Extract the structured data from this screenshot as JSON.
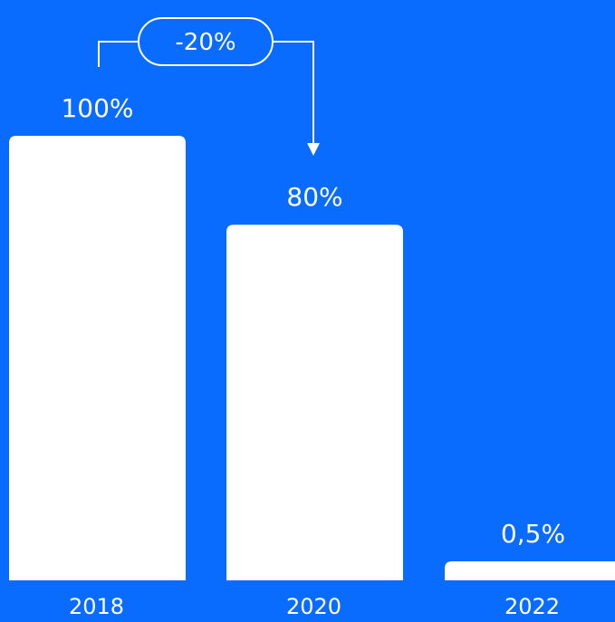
{
  "chart_data": {
    "type": "bar",
    "categories": [
      "2018",
      "2020",
      "2022"
    ],
    "values": [
      100,
      80,
      0.5
    ],
    "value_labels": [
      "100%",
      "80%",
      "0,5%"
    ],
    "ylim": [
      0,
      100
    ],
    "grid": false,
    "title": "",
    "xlabel": "",
    "ylabel": "",
    "annotation": {
      "text": "-20%",
      "from_category": "2018",
      "to_category": "2020"
    }
  },
  "colors": {
    "background": "#0a6cff",
    "bar": "#ffffff",
    "text": "#ffffff"
  }
}
